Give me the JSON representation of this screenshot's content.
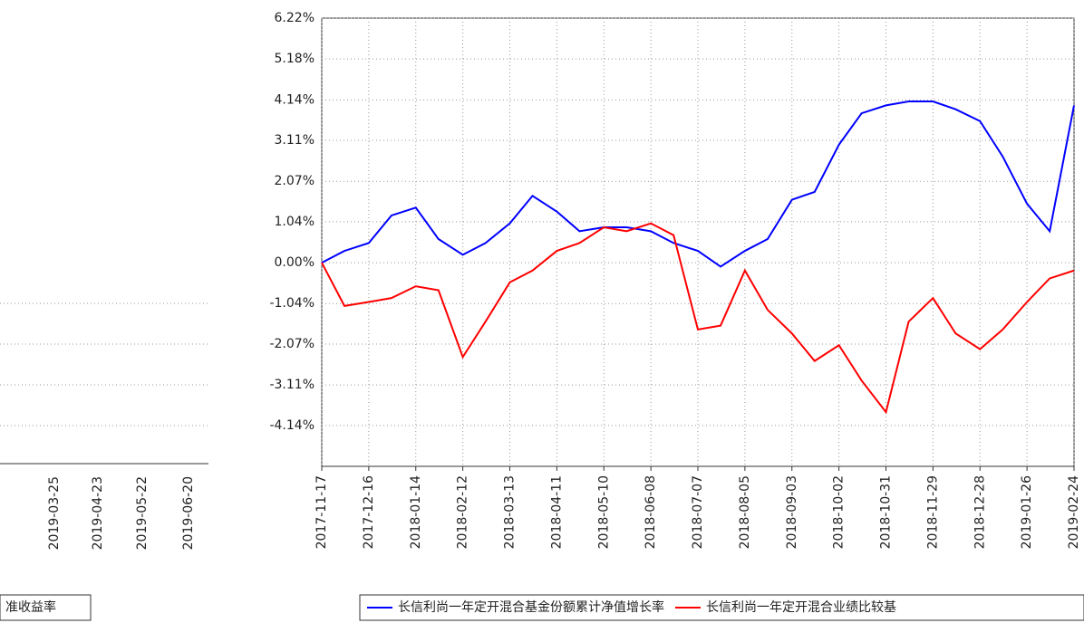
{
  "chart_data": {
    "type": "line",
    "x": [
      "2017-11-17",
      "2017-12-01",
      "2017-12-16",
      "2017-12-30",
      "2018-01-14",
      "2018-01-28",
      "2018-02-12",
      "2018-02-26",
      "2018-03-13",
      "2018-03-27",
      "2018-04-11",
      "2018-04-25",
      "2018-05-10",
      "2018-05-24",
      "2018-06-08",
      "2018-06-22",
      "2018-07-07",
      "2018-07-21",
      "2018-08-05",
      "2018-08-19",
      "2018-09-03",
      "2018-09-17",
      "2018-10-02",
      "2018-10-16",
      "2018-10-31",
      "2018-11-14",
      "2018-11-29",
      "2018-12-13",
      "2018-12-28",
      "2019-01-11",
      "2019-01-26",
      "2019-02-09",
      "2019-02-24"
    ],
    "xlim": [
      "2017-11-17",
      "2019-02-24"
    ],
    "xticks": [
      "2017-11-17",
      "2017-12-16",
      "2018-01-14",
      "2018-02-12",
      "2018-03-13",
      "2018-04-11",
      "2018-05-10",
      "2018-06-08",
      "2018-07-07",
      "2018-08-05",
      "2018-09-03",
      "2018-10-02",
      "2018-10-31",
      "2018-11-29",
      "2018-12-28",
      "2019-01-26",
      "2019-02-24"
    ],
    "ylim": [
      -5.18,
      6.22
    ],
    "yticks": [
      {
        "value": 6.22,
        "label": "6.22%"
      },
      {
        "value": 5.18,
        "label": "5.18%"
      },
      {
        "value": 4.14,
        "label": "4.14%"
      },
      {
        "value": 3.11,
        "label": "3.11%"
      },
      {
        "value": 2.07,
        "label": "2.07%"
      },
      {
        "value": 1.04,
        "label": "1.04%"
      },
      {
        "value": 0,
        "label": "0.00%"
      },
      {
        "value": -1.04,
        "label": "-1.04%"
      },
      {
        "value": -2.07,
        "label": "-2.07%"
      },
      {
        "value": -3.11,
        "label": "-3.11%"
      },
      {
        "value": -4.14,
        "label": "-4.14%"
      }
    ],
    "grid": true,
    "series": [
      {
        "name": "长信利尚一年定开混合基金份额累计净值增长率",
        "color": "#0000ff",
        "values": [
          0,
          0.3,
          0.5,
          1.2,
          1.4,
          0.6,
          0.2,
          0.5,
          1.0,
          1.7,
          1.3,
          0.8,
          0.9,
          0.9,
          0.8,
          0.5,
          0.3,
          -0.1,
          0.3,
          0.6,
          1.6,
          1.8,
          3.0,
          3.8,
          4.0,
          4.1,
          4.1,
          3.9,
          3.6,
          2.7,
          1.5,
          0.8,
          4.0
        ]
      },
      {
        "name": "长信利尚一年定开混合业绩比较基",
        "color": "#ff0000",
        "values": [
          0,
          -1.1,
          -1.0,
          -0.9,
          -0.6,
          -0.7,
          -2.4,
          -1.5,
          -0.5,
          -0.2,
          0.3,
          0.5,
          0.9,
          0.8,
          1.0,
          0.7,
          -1.7,
          -1.6,
          -0.2,
          -1.2,
          -1.8,
          -2.5,
          -2.1,
          -3.0,
          -3.8,
          -1.5,
          -0.9,
          -1.8,
          -2.2,
          -1.7,
          -1.0,
          -0.4,
          -0.2
        ]
      }
    ]
  },
  "left_fragment": {
    "dates": [
      "2019-03-25",
      "2019-04-23",
      "2019-05-22",
      "2019-06-20"
    ],
    "legend": "准收益率"
  }
}
